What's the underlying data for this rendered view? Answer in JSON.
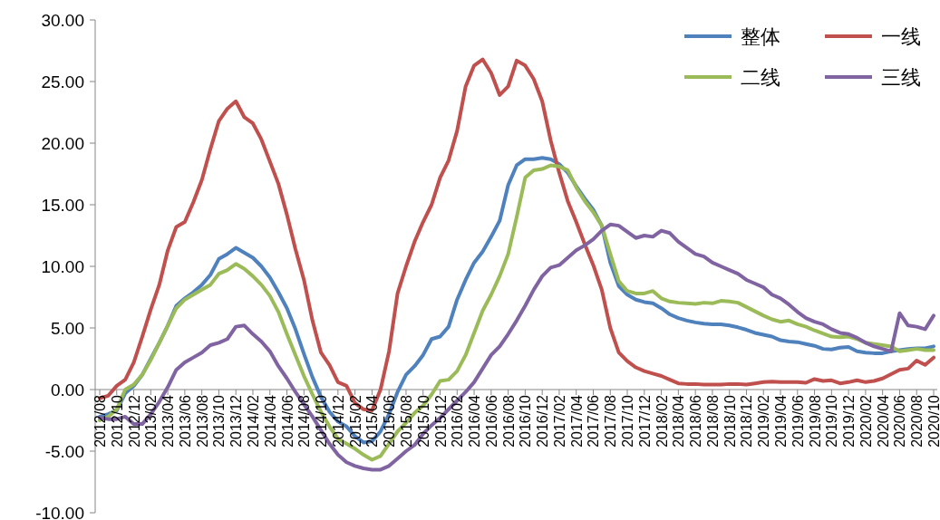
{
  "chart_data": {
    "type": "line",
    "legend": "top right",
    "ylim": [
      -10,
      30
    ],
    "yticks": [
      {
        "value": -10,
        "label": "-10.00"
      },
      {
        "value": -5,
        "label": "-5.00"
      },
      {
        "value": 0,
        "label": "0.00"
      },
      {
        "value": 5,
        "label": "5.00"
      },
      {
        "value": 10,
        "label": "10.00"
      },
      {
        "value": 15,
        "label": "15.00"
      },
      {
        "value": 20,
        "label": "20.00"
      },
      {
        "value": 25,
        "label": "25.00"
      },
      {
        "value": 30,
        "label": "30.00"
      }
    ],
    "categories": [
      "2012/08",
      null,
      "2012/10",
      null,
      "2012/12",
      null,
      "2013/02",
      null,
      "2013/04",
      null,
      "2013/06",
      null,
      "2013/08",
      null,
      "2013/10",
      null,
      "2013/12",
      null,
      "2014/02",
      null,
      "2014/04",
      null,
      "2014/06",
      null,
      "2014/08",
      null,
      "2014/10",
      null,
      "2014/12",
      null,
      "2015/02",
      null,
      "2015/04",
      null,
      "2015/06",
      null,
      "2015/08",
      null,
      "2015/10",
      null,
      "2015/12",
      null,
      "2016/02",
      null,
      "2016/04",
      null,
      "2016/06",
      null,
      "2016/08",
      null,
      "2016/10",
      null,
      "2016/12",
      null,
      "2017/02",
      null,
      "2017/04",
      null,
      "2017/06",
      null,
      "2017/08",
      null,
      "2017/10",
      null,
      "2017/12",
      null,
      "2018/02",
      null,
      "2018/04",
      null,
      "2018/06",
      null,
      "2018/08",
      null,
      "2018/10",
      null,
      "2018/12",
      null,
      "2019/02",
      null,
      "2019/04",
      null,
      "2019/06",
      null,
      "2019/08",
      null,
      "2019/10",
      null,
      "2019/12",
      null,
      "2020/02",
      null,
      "2020/04",
      null,
      "2020/06",
      null,
      "2020/08",
      null,
      "2020/10"
    ],
    "series": [
      {
        "name": "整体",
        "color": "#4f81bd",
        "values": [
          -2.2,
          -2.0,
          -1.7,
          -0.3,
          0.3,
          1.2,
          2.5,
          3.8,
          5.2,
          6.8,
          7.4,
          7.9,
          8.5,
          9.3,
          10.6,
          11.0,
          11.5,
          11.1,
          10.7,
          10.0,
          9.1,
          7.9,
          6.6,
          4.9,
          2.9,
          1.0,
          -0.6,
          -1.8,
          -2.6,
          -3.0,
          -3.8,
          -4.3,
          -4.2,
          -3.4,
          -2.0,
          -0.2,
          1.2,
          1.9,
          2.8,
          4.1,
          4.3,
          5.1,
          7.3,
          8.9,
          10.3,
          11.2,
          12.4,
          13.7,
          16.6,
          18.2,
          18.7,
          18.7,
          18.8,
          18.7,
          18.3,
          17.6,
          16.5,
          15.5,
          14.6,
          13.3,
          10.3,
          8.4,
          7.7,
          7.3,
          7.1,
          7.0,
          6.6,
          6.1,
          5.8,
          5.6,
          5.45,
          5.35,
          5.3,
          5.3,
          5.2,
          5.05,
          4.85,
          4.6,
          4.45,
          4.3,
          4.0,
          3.9,
          3.85,
          3.7,
          3.55,
          3.3,
          3.25,
          3.4,
          3.45,
          3.1,
          3.0,
          2.95,
          2.95,
          3.1,
          3.2,
          3.3,
          3.35,
          3.35,
          3.5
        ]
      },
      {
        "name": "一线",
        "color": "#c0504d",
        "values": [
          -0.7,
          -0.5,
          0.3,
          0.8,
          2.2,
          4.3,
          6.5,
          8.5,
          11.3,
          13.2,
          13.6,
          15.2,
          17.0,
          19.5,
          21.8,
          22.8,
          23.4,
          22.1,
          21.6,
          20.3,
          18.5,
          16.7,
          14.2,
          11.4,
          8.9,
          5.6,
          3.0,
          2.0,
          0.6,
          0.3,
          -1.1,
          -1.6,
          -1.7,
          0.0,
          3.1,
          7.8,
          10.0,
          12.0,
          13.6,
          15.0,
          17.2,
          18.6,
          21.0,
          24.6,
          26.3,
          26.8,
          25.7,
          23.9,
          24.6,
          26.7,
          26.3,
          25.2,
          23.4,
          20.2,
          17.6,
          15.3,
          13.6,
          11.8,
          10.1,
          8.1,
          5.0,
          3.0,
          2.3,
          1.8,
          1.5,
          1.3,
          1.1,
          0.8,
          0.5,
          0.45,
          0.45,
          0.4,
          0.4,
          0.4,
          0.45,
          0.45,
          0.4,
          0.5,
          0.6,
          0.65,
          0.6,
          0.6,
          0.6,
          0.55,
          0.85,
          0.7,
          0.75,
          0.5,
          0.6,
          0.75,
          0.6,
          0.7,
          0.9,
          1.25,
          1.6,
          1.7,
          2.35,
          2.0,
          2.6
        ]
      },
      {
        "name": "二线",
        "color": "#9bbb59",
        "values": [
          -2.5,
          -2.2,
          -1.6,
          0.0,
          0.4,
          1.2,
          2.4,
          3.8,
          5.2,
          6.6,
          7.3,
          7.7,
          8.1,
          8.5,
          9.4,
          9.7,
          10.2,
          9.8,
          9.2,
          8.5,
          7.6,
          6.3,
          4.5,
          2.8,
          1.1,
          -0.4,
          -1.8,
          -3.0,
          -4.0,
          -4.4,
          -4.8,
          -5.3,
          -5.7,
          -5.4,
          -4.4,
          -3.4,
          -2.7,
          -1.9,
          -1.3,
          -0.4,
          0.7,
          0.8,
          1.5,
          2.8,
          4.6,
          6.4,
          7.7,
          9.2,
          11.0,
          14.0,
          17.2,
          17.8,
          17.9,
          18.2,
          18.1,
          17.8,
          16.4,
          15.3,
          14.4,
          13.3,
          11.0,
          8.8,
          8.0,
          7.8,
          7.8,
          8.0,
          7.4,
          7.15,
          7.05,
          7.0,
          6.95,
          7.05,
          7.0,
          7.2,
          7.15,
          7.05,
          6.7,
          6.35,
          6.0,
          5.7,
          5.5,
          5.6,
          5.3,
          5.1,
          4.8,
          4.55,
          4.3,
          4.25,
          4.3,
          4.1,
          3.8,
          3.7,
          3.6,
          3.5,
          3.1,
          3.2,
          3.3,
          3.2,
          3.2
        ]
      },
      {
        "name": "三线",
        "color": "#8064a2",
        "values": [
          -2.3,
          -2.4,
          -2.4,
          -2.2,
          -2.8,
          -2.8,
          -2.0,
          -1.0,
          0.2,
          1.6,
          2.2,
          2.6,
          3.0,
          3.6,
          3.8,
          4.1,
          5.1,
          5.2,
          4.5,
          3.9,
          3.1,
          1.9,
          0.9,
          -0.2,
          -1.2,
          -2.2,
          -3.3,
          -4.4,
          -5.3,
          -5.9,
          -6.2,
          -6.4,
          -6.5,
          -6.5,
          -6.2,
          -5.6,
          -5.0,
          -4.5,
          -3.6,
          -2.9,
          -2.3,
          -1.6,
          -0.9,
          -0.2,
          0.6,
          1.7,
          2.8,
          3.5,
          4.5,
          5.6,
          6.8,
          8.1,
          9.2,
          9.9,
          10.1,
          10.7,
          11.3,
          11.7,
          12.2,
          12.9,
          13.4,
          13.3,
          12.8,
          12.3,
          12.5,
          12.4,
          12.9,
          12.7,
          12.0,
          11.5,
          11.0,
          10.8,
          10.3,
          10.0,
          9.7,
          9.4,
          8.9,
          8.6,
          8.3,
          7.7,
          7.4,
          6.9,
          6.3,
          5.8,
          5.5,
          5.3,
          4.9,
          4.6,
          4.5,
          4.2,
          3.8,
          3.5,
          3.3,
          3.1,
          6.2,
          5.2,
          5.1,
          4.9,
          6.0
        ]
      }
    ]
  }
}
